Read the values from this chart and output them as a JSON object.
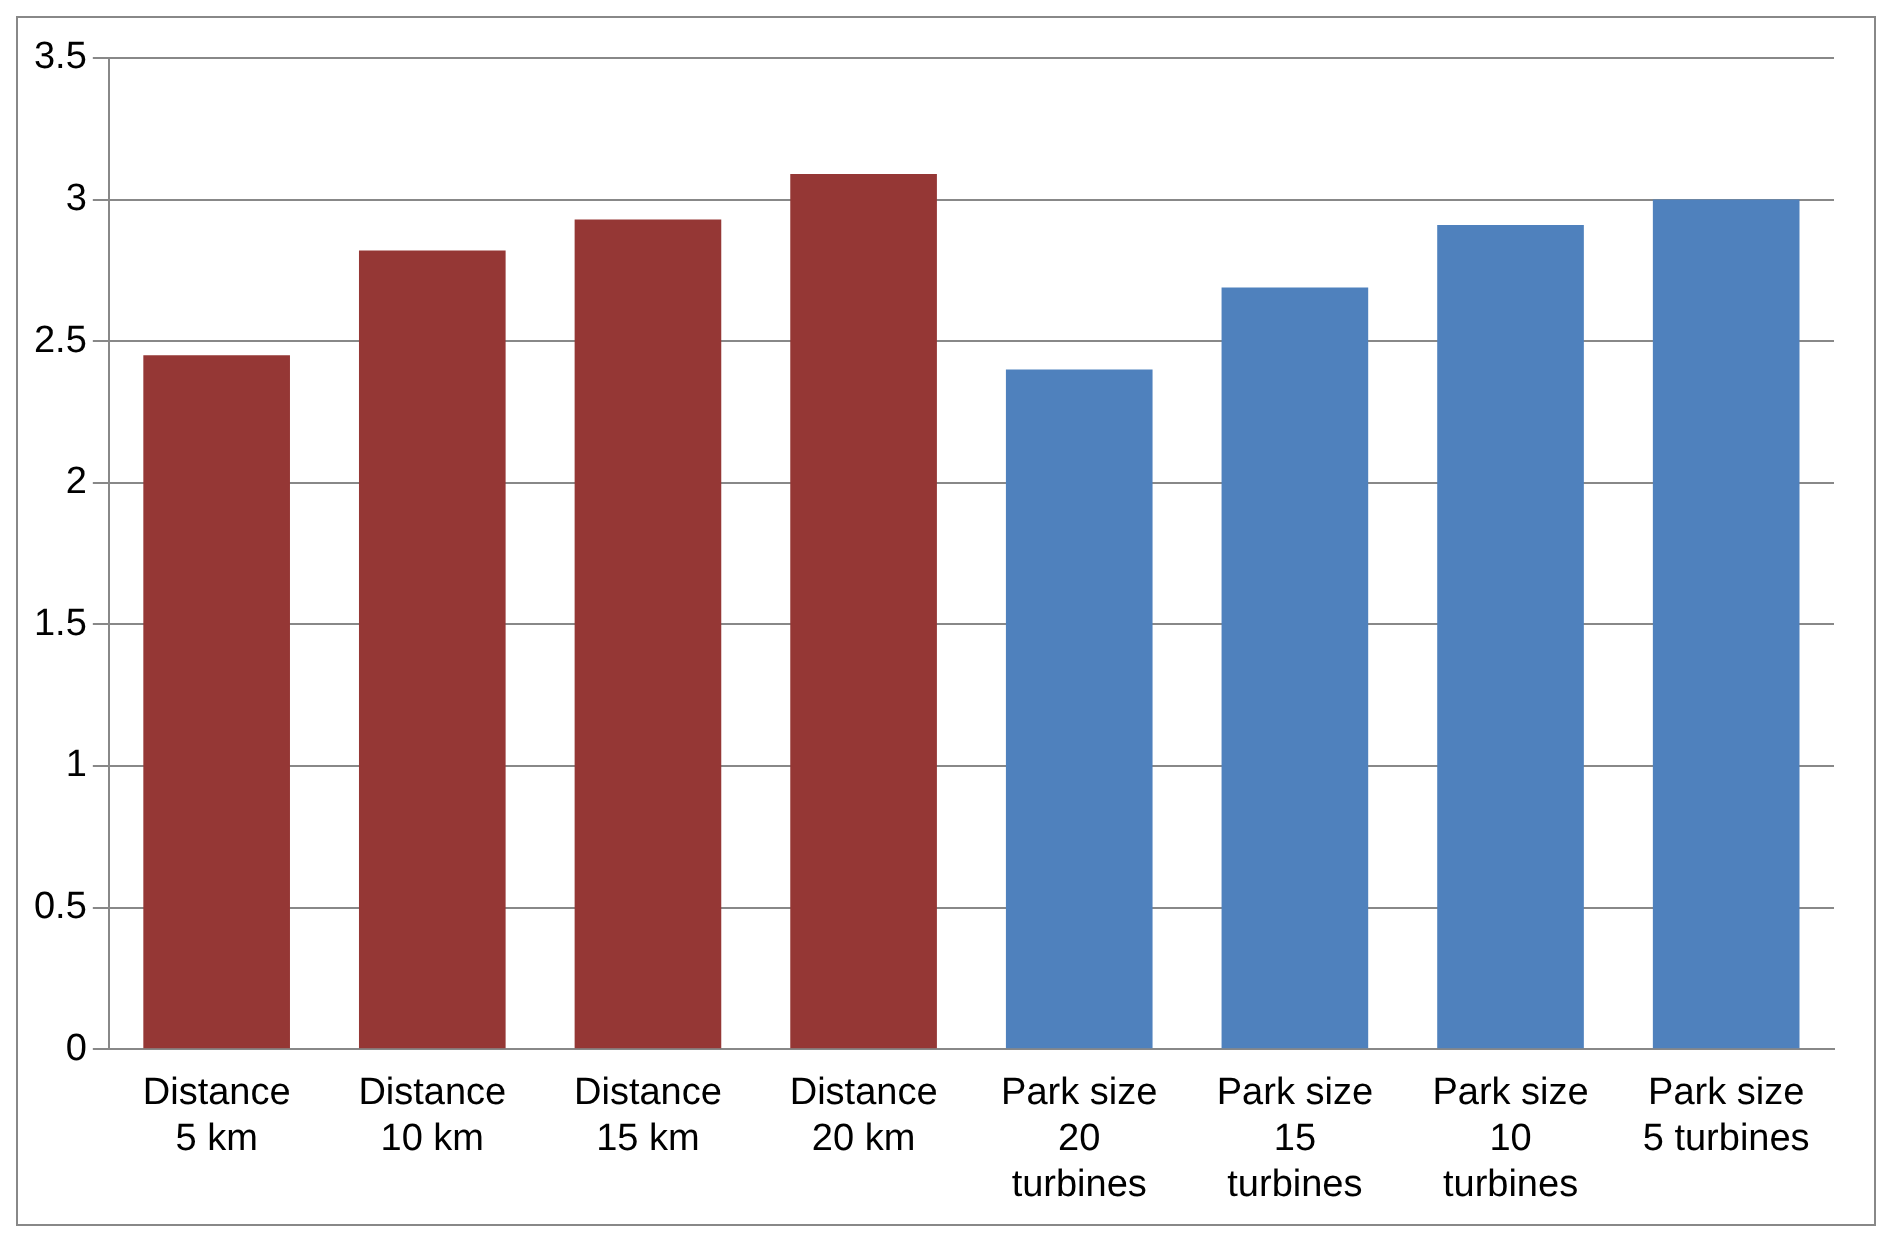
{
  "chart_data": {
    "type": "bar",
    "categories": [
      "Distance\n5 km",
      "Distance\n10 km",
      "Distance\n15 km",
      "Distance\n20 km",
      "Park size\n20\nturbines",
      "Park size\n15\nturbines",
      "Park size\n10\nturbines",
      "Park size\n5 turbines"
    ],
    "values": [
      2.45,
      2.82,
      2.93,
      3.09,
      2.4,
      2.69,
      2.91,
      3.0
    ],
    "colors": [
      "#953735",
      "#953735",
      "#953735",
      "#953735",
      "#4f81bd",
      "#4f81bd",
      "#4f81bd",
      "#4f81bd"
    ],
    "ylim": [
      0,
      3.5
    ],
    "yticks": [
      0,
      0.5,
      1,
      1.5,
      2,
      2.5,
      3,
      3.5
    ],
    "grid": "y",
    "legend": false
  }
}
